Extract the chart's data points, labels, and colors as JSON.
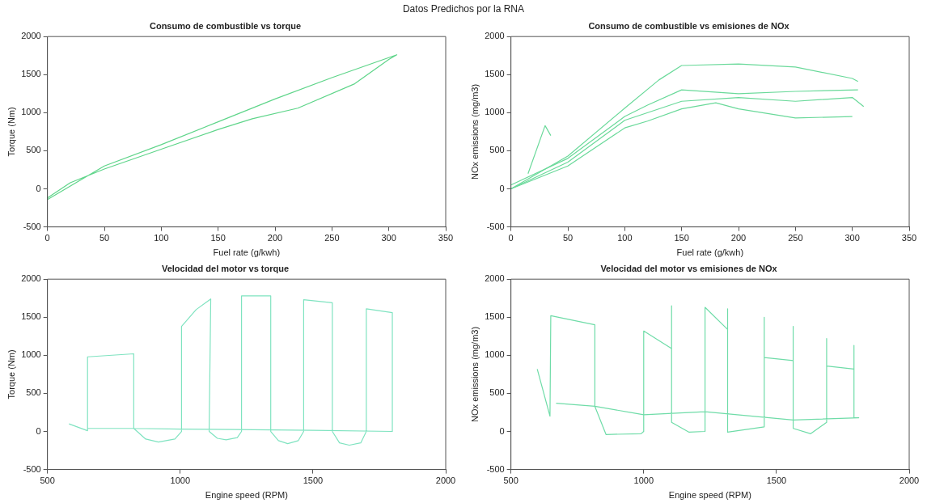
{
  "chart_data": [
    {
      "type": "line",
      "title": "Consumo de combustible vs torque",
      "xlabel": "Fuel rate (g/kwh)",
      "ylabel": "Torque (Nm)",
      "annotations": [
        "Datos Predichos por la RNA"
      ],
      "xlim": [
        0,
        350
      ],
      "xticks": [
        0,
        50,
        100,
        150,
        200,
        250,
        300,
        350
      ],
      "ylim": [
        -500,
        2000
      ],
      "yticks": [
        -500,
        0,
        500,
        1000,
        1500,
        2000
      ],
      "grid": false,
      "legend": false,
      "marker": "none",
      "series": [
        {
          "color": "#5fd58a",
          "x": [
            0,
            50,
            100,
            150,
            200,
            250,
            307,
            300,
            270,
            220,
            180,
            150,
            100,
            50,
            20,
            0
          ],
          "values": [
            -140,
            300,
            580,
            880,
            1180,
            1460,
            1760,
            1700,
            1380,
            1060,
            920,
            780,
            520,
            260,
            80,
            -120
          ]
        }
      ]
    },
    {
      "type": "line",
      "title": "Consumo de combustible vs emisiones de NOx",
      "xlabel": "Fuel rate (g/kwh)",
      "ylabel": "NOx emissions (mg/m3)",
      "xlim": [
        0,
        350
      ],
      "xticks": [
        0,
        50,
        100,
        150,
        200,
        250,
        300,
        350
      ],
      "ylim": [
        -500,
        2000
      ],
      "yticks": [
        -500,
        0,
        500,
        1000,
        1500,
        2000
      ],
      "grid": false,
      "legend": false,
      "marker": "none",
      "series": [
        {
          "color": "#6ad99a",
          "x": [
            0,
            50,
            100,
            130,
            150,
            200,
            250,
            300,
            305
          ],
          "values": [
            0,
            430,
            1060,
            1430,
            1620,
            1640,
            1600,
            1450,
            1410
          ]
        },
        {
          "color": "#6ad99a",
          "x": [
            0,
            50,
            100,
            120,
            150,
            200,
            250,
            305
          ],
          "values": [
            50,
            400,
            950,
            1100,
            1300,
            1250,
            1280,
            1300
          ]
        },
        {
          "color": "#6ad99a",
          "x": [
            0,
            50,
            100,
            150,
            200,
            250,
            300,
            310
          ],
          "values": [
            0,
            350,
            900,
            1150,
            1200,
            1150,
            1200,
            1080
          ]
        },
        {
          "color": "#6ad99a",
          "x": [
            0,
            50,
            100,
            120,
            150,
            180,
            200,
            250,
            300
          ],
          "values": [
            0,
            300,
            800,
            890,
            1050,
            1130,
            1050,
            930,
            950
          ]
        },
        {
          "color": "#6ad99a",
          "x": [
            15,
            30,
            35
          ],
          "values": [
            200,
            830,
            700
          ]
        }
      ]
    },
    {
      "type": "line",
      "title": "Velocidad del motor vs torque",
      "xlabel": "Engine speed (RPM)",
      "ylabel": "Torque (Nm)",
      "xlim": [
        500,
        2000
      ],
      "xticks": [
        500,
        1000,
        1500,
        2000
      ],
      "ylim": [
        -500,
        2000
      ],
      "yticks": [
        -500,
        0,
        500,
        1000,
        1500,
        2000
      ],
      "grid": false,
      "legend": false,
      "marker": "none",
      "series": [
        {
          "color": "#7fe3c0",
          "x": [
            581,
            651,
            651,
            825,
            825,
            870,
            918,
            980,
            1005,
            1005,
            1060,
            1115,
            1109,
            1140,
            1173,
            1215,
            1231,
            1231,
            1341,
            1341,
            1370,
            1405,
            1445,
            1465,
            1465,
            1573,
            1573,
            1600,
            1637,
            1680,
            1701,
            1701,
            1799,
            1799,
            1500,
            1200,
            1000,
            825,
            651
          ],
          "values": [
            100,
            10,
            980,
            1020,
            40,
            -100,
            -140,
            -100,
            0,
            1380,
            1600,
            1740,
            0,
            -90,
            -110,
            -80,
            0,
            1780,
            1780,
            0,
            -120,
            -160,
            -120,
            0,
            1730,
            1690,
            0,
            -150,
            -180,
            -150,
            0,
            1610,
            1560,
            0,
            15,
            25,
            30,
            40,
            40
          ]
        }
      ]
    },
    {
      "type": "line",
      "title": "Velocidad del motor vs emisiones de NOx",
      "xlabel": "Engine speed (RPM)",
      "ylabel": "NOx emissions (mg/m3)",
      "xlim": [
        500,
        2000
      ],
      "xticks": [
        500,
        1000,
        1500,
        2000
      ],
      "ylim": [
        -500,
        2000
      ],
      "yticks": [
        -500,
        0,
        500,
        1000,
        1500,
        2000
      ],
      "grid": false,
      "legend": false,
      "marker": "none",
      "series": [
        {
          "color": "#6fdca8",
          "x": [
            599,
            647,
            650,
            816,
            816,
            858,
            990,
            1000,
            1000,
            1105,
            1105,
            1105,
            1171,
            1231,
            1231,
            1316,
            1316,
            1316,
            1454,
            1454,
            1454,
            1563,
            1563,
            1563,
            1629,
            1689,
            1689,
            1689,
            1792,
            1792,
            1792,
            1810,
            1563,
            1231,
            1000,
            816,
            670
          ],
          "values": [
            820,
            200,
            1520,
            1400,
            330,
            -40,
            -30,
            0,
            1320,
            1090,
            1650,
            120,
            -10,
            0,
            1630,
            1340,
            1610,
            -10,
            60,
            1500,
            970,
            930,
            1380,
            40,
            -30,
            120,
            1220,
            860,
            820,
            1130,
            180,
            180,
            150,
            260,
            220,
            330,
            370
          ]
        }
      ]
    }
  ]
}
